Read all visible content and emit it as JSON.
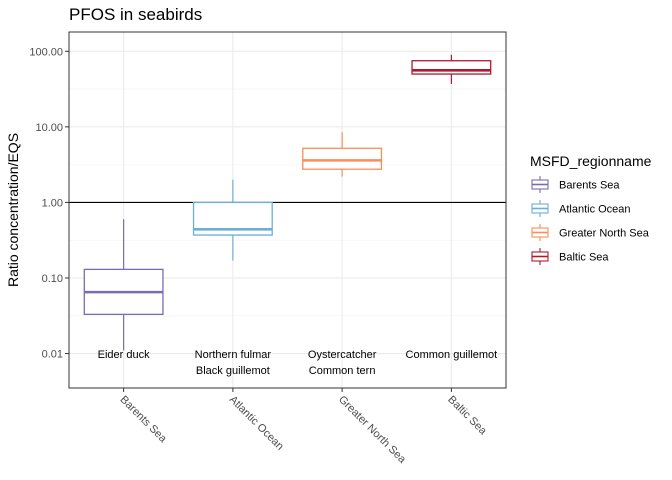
{
  "chart_data": {
    "type": "boxplot",
    "title": "PFOS in seabirds",
    "xlabel": "",
    "ylabel": "Ratio concentration/EQS",
    "yscale": "log10",
    "ylim": [
      0.0035,
      180
    ],
    "yticks": [
      0.01,
      0.1,
      1,
      10,
      100
    ],
    "ytick_labels": [
      "0.01",
      "0.10",
      "1.00",
      "10.00",
      "100.00"
    ],
    "reference_line": 1,
    "categories": [
      "Barents Sea",
      "Atlantic Ocean",
      "Greater North Sea",
      "Baltic Sea"
    ],
    "boxes": [
      {
        "region": "Barents Sea",
        "min": 0.011,
        "q1": 0.033,
        "median": 0.065,
        "q3": 0.13,
        "max": 0.6,
        "color": "#7b6bb3",
        "species": [
          "Eider duck"
        ]
      },
      {
        "region": "Atlantic Ocean",
        "min": 0.17,
        "q1": 0.37,
        "median": 0.44,
        "q3": 1.0,
        "max": 2.0,
        "color": "#6baed6",
        "species": [
          "Northern fulmar",
          "Black guillemot"
        ]
      },
      {
        "region": "Greater North Sea",
        "min": 2.2,
        "q1": 2.75,
        "median": 3.6,
        "q3": 5.2,
        "max": 8.5,
        "color": "#fc8d59",
        "species": [
          "Oystercatcher",
          "Common tern"
        ]
      },
      {
        "region": "Baltic Sea",
        "min": 37,
        "q1": 50,
        "median": 56,
        "q3": 75,
        "max": 90,
        "color": "#b2182b",
        "species": [
          "Common guillemot"
        ]
      }
    ],
    "legend": {
      "title": "MSFD_regionname",
      "position": "right"
    }
  }
}
